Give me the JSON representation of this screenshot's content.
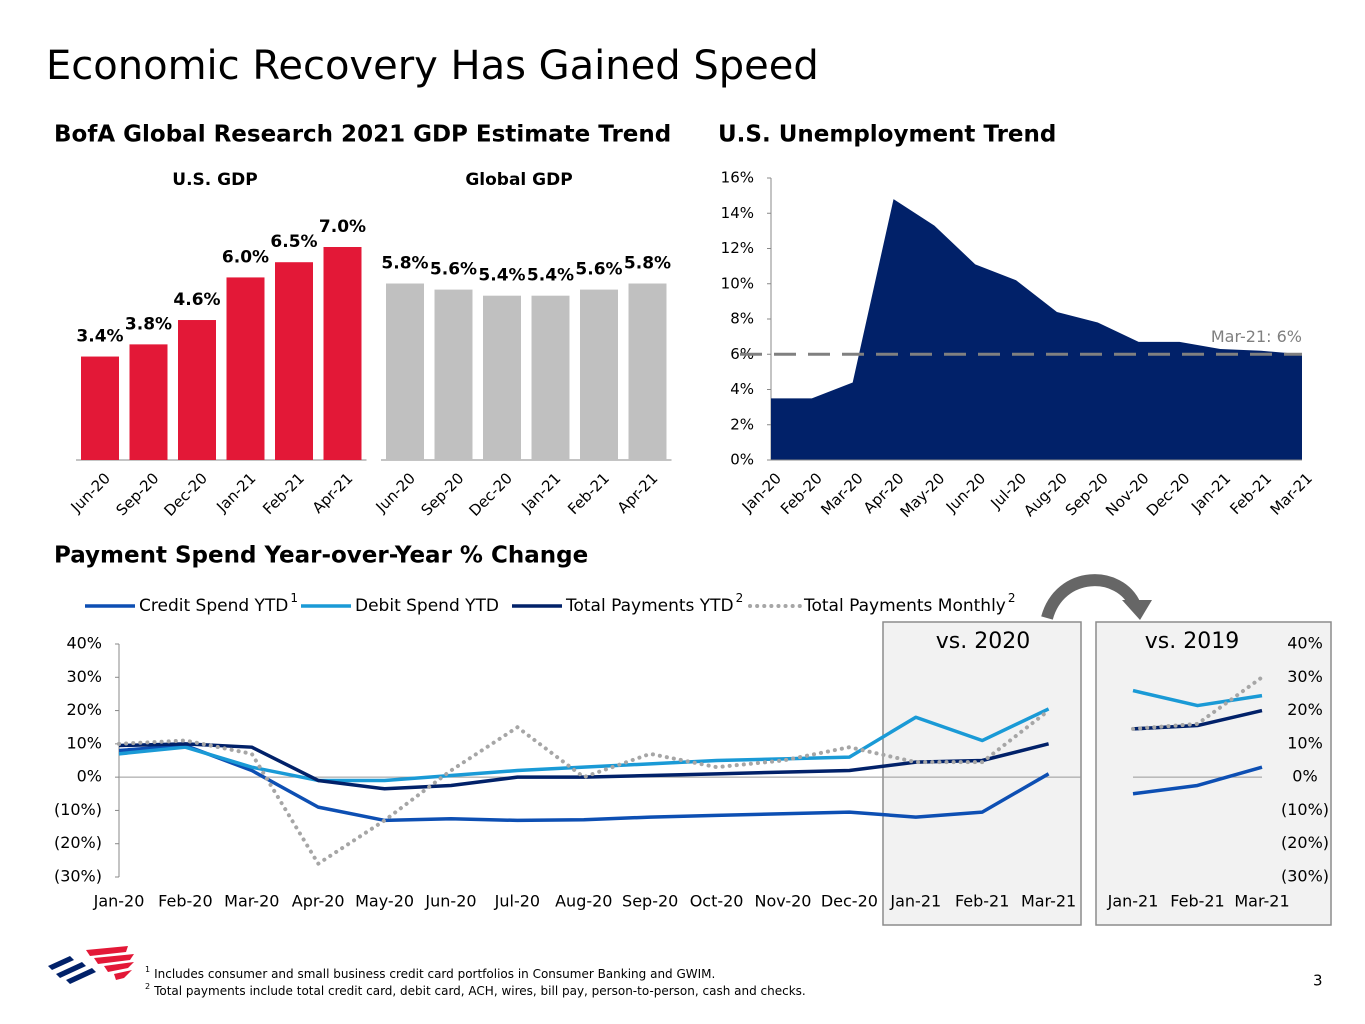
{
  "title": "Economic Recovery Has Gained Speed",
  "gdp_heading": "BofA Global Research 2021 GDP Estimate Trend",
  "footnotes": [
    {
      "mark": "1",
      "text": "Includes consumer and small business credit card portfolios in Consumer Banking and GWIM."
    },
    {
      "mark": "2",
      "text": "Total payments include total credit card, debit card, ACH, wires, bill pay, person-to-person, cash and checks."
    }
  ],
  "page_number": "3",
  "chart_data": [
    {
      "type": "bar",
      "title": "U.S. GDP",
      "color": "#e31837",
      "categories": [
        "Jun-20",
        "Sep-20",
        "Dec-20",
        "Jan-21",
        "Feb-21",
        "Apr-21"
      ],
      "values": [
        3.4,
        3.8,
        4.6,
        6.0,
        6.5,
        7.0
      ],
      "value_labels": [
        "3.4%",
        "3.8%",
        "4.6%",
        "6.0%",
        "6.5%",
        "7.0%"
      ]
    },
    {
      "type": "bar",
      "title": "Global GDP",
      "color": "#c0c0c0",
      "categories": [
        "Jun-20",
        "Sep-20",
        "Dec-20",
        "Jan-21",
        "Feb-21",
        "Apr-21"
      ],
      "values": [
        5.8,
        5.6,
        5.4,
        5.4,
        5.6,
        5.8
      ],
      "value_labels": [
        "5.8%",
        "5.6%",
        "5.4%",
        "5.4%",
        "5.6%",
        "5.8%"
      ]
    },
    {
      "type": "area",
      "title": "U.S. Unemployment Trend",
      "color": "#012169",
      "categories": [
        "Jan-20",
        "Feb-20",
        "Mar-20",
        "Apr-20",
        "May-20",
        "Jun-20",
        "Jul-20",
        "Aug-20",
        "Sep-20",
        "Nov-20",
        "Dec-20",
        "Jan-21",
        "Feb-21",
        "Mar-21"
      ],
      "values": [
        3.5,
        3.5,
        4.4,
        14.8,
        13.3,
        11.1,
        10.2,
        8.4,
        7.8,
        6.7,
        6.7,
        6.3,
        6.2,
        6.0
      ],
      "ylim": [
        0,
        16
      ],
      "yticks": [
        {
          "value": 0,
          "label": "0%"
        },
        {
          "value": 2,
          "label": "2%"
        },
        {
          "value": 4,
          "label": "4%"
        },
        {
          "value": 6,
          "label": "6%"
        },
        {
          "value": 8,
          "label": "8%"
        },
        {
          "value": 10,
          "label": "10%"
        },
        {
          "value": 12,
          "label": "12%"
        },
        {
          "value": 14,
          "label": "14%"
        },
        {
          "value": 16,
          "label": "16%"
        }
      ],
      "reference_line": {
        "value": 6,
        "label": "Mar-21: 6%",
        "color": "#808080"
      }
    },
    {
      "type": "line",
      "title": "Payment Spend Year-over-Year % Change",
      "annotation": "vs. 2020",
      "categories": [
        "Jan-20",
        "Feb-20",
        "Mar-20",
        "Apr-20",
        "May-20",
        "Jun-20",
        "Jul-20",
        "Aug-20",
        "Sep-20",
        "Oct-20",
        "Nov-20",
        "Dec-20",
        "Jan-21",
        "Feb-21",
        "Mar-21"
      ],
      "series": [
        {
          "name": "Credit Spend YTD",
          "note": "1",
          "color": "#0d4fb3",
          "style": "solid",
          "values": [
            8,
            9.5,
            2,
            -9,
            -13,
            -12.5,
            -13,
            -12.8,
            -12,
            -11.5,
            -11,
            -10.5,
            -12,
            -10.5,
            1
          ]
        },
        {
          "name": "Debit Spend YTD",
          "color": "#1a9ad6",
          "style": "solid",
          "values": [
            7,
            9,
            3,
            -1,
            -1,
            0.5,
            2,
            3,
            4,
            5,
            5.5,
            6,
            18,
            11,
            20.5
          ]
        },
        {
          "name": "Total Payments YTD",
          "note": "2",
          "color": "#012169",
          "style": "solid",
          "values": [
            9.5,
            10,
            9,
            -1,
            -3.5,
            -2.5,
            0,
            0,
            0.5,
            1,
            1.5,
            2,
            4.5,
            5,
            10
          ]
        },
        {
          "name": "Total Payments Monthly",
          "note": "2",
          "color": "#a6a6a6",
          "style": "dotted",
          "values": [
            10,
            11,
            7,
            -26,
            -13,
            2,
            15,
            0,
            7,
            3,
            5,
            9,
            4.5,
            4.5,
            20
          ]
        }
      ],
      "ylim": [
        -30,
        40
      ],
      "yticks": [
        {
          "value": -30,
          "label": "(30%)"
        },
        {
          "value": -20,
          "label": "(20%)"
        },
        {
          "value": -10,
          "label": "(10%)"
        },
        {
          "value": 0,
          "label": "0%"
        },
        {
          "value": 10,
          "label": "10%"
        },
        {
          "value": 20,
          "label": "20%"
        },
        {
          "value": 30,
          "label": "30%"
        },
        {
          "value": 40,
          "label": "40%"
        }
      ]
    },
    {
      "type": "line",
      "annotation": "vs. 2019",
      "categories": [
        "Jan-21",
        "Feb-21",
        "Mar-21"
      ],
      "series": [
        {
          "color": "#0d4fb3",
          "style": "solid",
          "values": [
            -5,
            -2.5,
            3
          ]
        },
        {
          "color": "#1a9ad6",
          "style": "solid",
          "values": [
            26,
            21.5,
            24.5
          ]
        },
        {
          "color": "#012169",
          "style": "solid",
          "values": [
            14.5,
            15.5,
            20
          ]
        },
        {
          "color": "#a6a6a6",
          "style": "dotted",
          "values": [
            14.5,
            16,
            30
          ]
        }
      ],
      "ylim": [
        -30,
        40
      ],
      "yticks": [
        {
          "value": -30,
          "label": "(30%)"
        },
        {
          "value": -20,
          "label": "(20%)"
        },
        {
          "value": -10,
          "label": "(10%)"
        },
        {
          "value": 0,
          "label": "0%"
        },
        {
          "value": 10,
          "label": "10%"
        },
        {
          "value": 20,
          "label": "20%"
        },
        {
          "value": 30,
          "label": "30%"
        },
        {
          "value": 40,
          "label": "40%"
        }
      ]
    }
  ]
}
